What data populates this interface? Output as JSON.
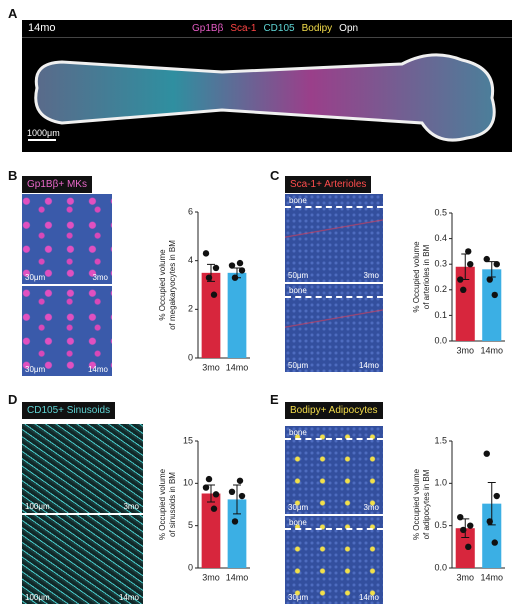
{
  "figure_a": {
    "label": "A",
    "age": "14mo",
    "scale": "1000μm",
    "channels": [
      {
        "name": "Gp1Bβ",
        "color": "#e45bc4"
      },
      {
        "name": "Sca-1",
        "color": "#ff4545"
      },
      {
        "name": "CD105",
        "color": "#5fd6d6"
      },
      {
        "name": "Bodipy",
        "color": "#f2dc4a"
      },
      {
        "name": "Opn",
        "color": "#ffffff"
      }
    ]
  },
  "panels": [
    {
      "label": "B",
      "tag": "Gp1Bβ+ MKs",
      "tag_color": "#e867c8",
      "images": [
        {
          "scale": "30μm",
          "age": "3mo"
        },
        {
          "scale": "30μm",
          "age": "14mo"
        }
      ]
    },
    {
      "label": "C",
      "tag": "Sca-1+ Arterioles",
      "tag_color": "#ff4d4d",
      "images": [
        {
          "region": "bone",
          "scale": "50μm",
          "age": "3mo"
        },
        {
          "region": "bone",
          "scale": "50μm",
          "age": "14mo"
        }
      ]
    },
    {
      "label": "D",
      "tag": "CD105+ Sinusoids",
      "tag_color": "#5fd3d3",
      "images": [
        {
          "scale": "100μm",
          "age": "3mo"
        },
        {
          "scale": "100μm",
          "age": "14mo"
        }
      ]
    },
    {
      "label": "E",
      "tag": "Bodipy+ Adipocytes",
      "tag_color": "#f2dc4a",
      "images": [
        {
          "region": "bone",
          "scale": "30μm",
          "age": "3mo"
        },
        {
          "region": "bone",
          "scale": "30μm",
          "age": "14mo"
        }
      ]
    }
  ],
  "chart_data": [
    {
      "type": "bar",
      "ylabel": [
        "% Occupied volume",
        "of megakaryocytes in BM"
      ],
      "categories": [
        "3mo",
        "14mo"
      ],
      "colors": [
        "#d7263d",
        "#3bafe4"
      ],
      "values": [
        3.5,
        3.5
      ],
      "errors": [
        0.35,
        0.2
      ],
      "points": [
        [
          4.3,
          3.7,
          3.3,
          2.6
        ],
        [
          3.8,
          3.6,
          3.3,
          3.9
        ]
      ],
      "ylim": [
        0,
        6
      ],
      "yticks": [
        0,
        2,
        4,
        6
      ]
    },
    {
      "type": "bar",
      "ylabel": [
        "% Occupied volume",
        "of arterioles in BM"
      ],
      "categories": [
        "3mo",
        "14mo"
      ],
      "colors": [
        "#d7263d",
        "#3bafe4"
      ],
      "values": [
        0.29,
        0.28
      ],
      "errors": [
        0.05,
        0.03
      ],
      "points": [
        [
          0.24,
          0.3,
          0.2,
          0.35
        ],
        [
          0.32,
          0.3,
          0.24,
          0.18
        ]
      ],
      "ylim": [
        0,
        0.5
      ],
      "yticks": [
        {
          "value": 0,
          "label": "0.0"
        },
        0.1,
        0.2,
        0.3,
        0.4,
        0.5
      ]
    },
    {
      "type": "bar",
      "ylabel": [
        "% Occupied volume",
        "of sinusoids in BM"
      ],
      "categories": [
        "3mo",
        "14mo"
      ],
      "colors": [
        "#d7263d",
        "#3bafe4"
      ],
      "values": [
        8.8,
        8.1
      ],
      "errors": [
        1.0,
        1.7
      ],
      "points": [
        [
          9.5,
          8.7,
          10.5,
          7.0
        ],
        [
          9.0,
          8.5,
          5.5,
          10.3
        ]
      ],
      "ylim": [
        0,
        15
      ],
      "yticks": [
        0,
        5,
        10,
        15
      ]
    },
    {
      "type": "bar",
      "ylabel": [
        "% Occupied volume",
        "of adipocytes in BM"
      ],
      "categories": [
        "3mo",
        "14mo"
      ],
      "colors": [
        "#d7263d",
        "#3bafe4"
      ],
      "values": [
        0.47,
        0.76
      ],
      "errors": [
        0.11,
        0.25
      ],
      "points": [
        [
          0.6,
          0.5,
          0.45,
          0.25
        ],
        [
          1.35,
          0.85,
          0.55,
          0.3
        ]
      ],
      "ylim": [
        0,
        1.5
      ],
      "yticks": [
        {
          "value": 0,
          "label": "0.0"
        },
        {
          "value": 0.5,
          "label": "0.5"
        },
        {
          "value": 1,
          "label": "1.0"
        },
        {
          "value": 1.5,
          "label": "1.5"
        }
      ]
    }
  ]
}
